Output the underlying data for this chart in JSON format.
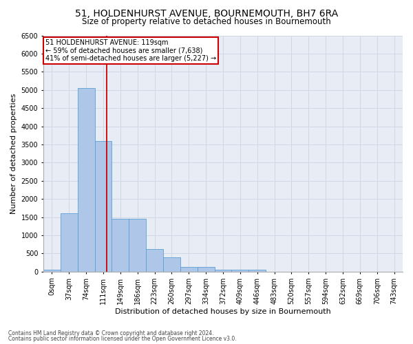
{
  "title_line1": "51, HOLDENHURST AVENUE, BOURNEMOUTH, BH7 6RA",
  "title_line2": "Size of property relative to detached houses in Bournemouth",
  "xlabel": "Distribution of detached houses by size in Bournemouth",
  "ylabel": "Number of detached properties",
  "footnote1": "Contains HM Land Registry data © Crown copyright and database right 2024.",
  "footnote2": "Contains public sector information licensed under the Open Government Licence v3.0.",
  "bar_labels": [
    "0sqm",
    "37sqm",
    "74sqm",
    "111sqm",
    "149sqm",
    "186sqm",
    "223sqm",
    "260sqm",
    "297sqm",
    "334sqm",
    "372sqm",
    "409sqm",
    "446sqm",
    "483sqm",
    "520sqm",
    "557sqm",
    "594sqm",
    "632sqm",
    "669sqm",
    "706sqm",
    "743sqm"
  ],
  "bar_values": [
    50,
    1600,
    5050,
    3600,
    1450,
    1450,
    620,
    390,
    120,
    120,
    50,
    50,
    50,
    0,
    0,
    0,
    0,
    0,
    0,
    0,
    0
  ],
  "bar_color": "#aec6e8",
  "bar_edge_color": "#5a9fd4",
  "vline_x": 3.22,
  "annotation_line1": "51 HOLDENHURST AVENUE: 119sqm",
  "annotation_line2": "← 59% of detached houses are smaller (7,638)",
  "annotation_line3": "41% of semi-detached houses are larger (5,227) →",
  "annotation_box_facecolor": "#ffffff",
  "annotation_box_edgecolor": "#cc0000",
  "vline_color": "#cc0000",
  "ylim": [
    0,
    6500
  ],
  "yticks": [
    0,
    500,
    1000,
    1500,
    2000,
    2500,
    3000,
    3500,
    4000,
    4500,
    5000,
    5500,
    6000,
    6500
  ],
  "grid_color": "#d0d8e8",
  "bg_color": "#e8edf5",
  "title1_fontsize": 10,
  "title2_fontsize": 8.5,
  "ylabel_fontsize": 8,
  "xlabel_fontsize": 8,
  "tick_fontsize": 7,
  "footnote_fontsize": 5.5
}
